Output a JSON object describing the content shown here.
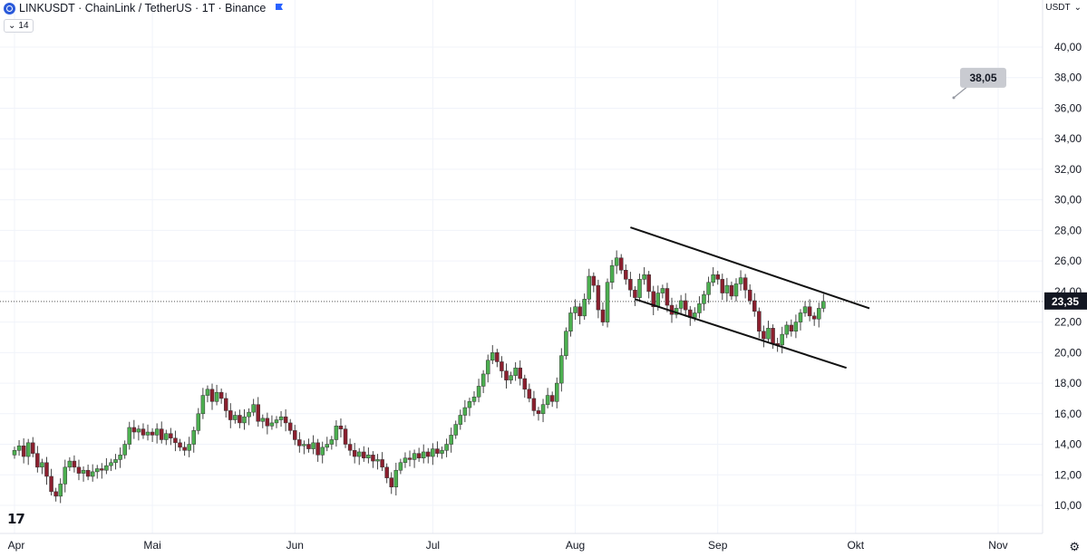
{
  "header": {
    "symbol_line": "LINKUSDT · ChainLink / TetherUS · 1T · Binance",
    "indicator_badge": "14"
  },
  "currency_label": "USDT",
  "colors": {
    "up": "#4caf50",
    "down": "#8b1f2e",
    "wick": "#555555",
    "grid": "#f0f3fa",
    "axis": "#e0e3eb"
  },
  "chart_data": {
    "type": "candlestick",
    "title": "LINKUSDT · ChainLink / TetherUS · 1T · Binance",
    "ylim": [
      8.8,
      41.5
    ],
    "yticks": [
      "40,00",
      "38,00",
      "36,00",
      "34,00",
      "32,00",
      "30,00",
      "28,00",
      "26,00",
      "24,00",
      "22,00",
      "20,00",
      "18,00",
      "16,00",
      "14,00",
      "12,00",
      "10,00"
    ],
    "ytick_values": [
      40,
      38,
      36,
      34,
      32,
      30,
      28,
      26,
      24,
      22,
      20,
      18,
      16,
      14,
      12,
      10
    ],
    "xticks": [
      "Apr",
      "Mai",
      "Jun",
      "Jul",
      "Aug",
      "Sep",
      "Okt",
      "Nov"
    ],
    "xtick_days": [
      0,
      30,
      61,
      91,
      122,
      153,
      183,
      214
    ],
    "xlim": [
      -1,
      218
    ],
    "current_price": 23.35,
    "current_price_label": "23,35",
    "target_price": 38.05,
    "target_label": "38,05",
    "channel": {
      "upper": [
        {
          "day": 134,
          "price": 28.2
        },
        {
          "day": 186,
          "price": 22.9
        }
      ],
      "lower": [
        {
          "day": 135,
          "price": 23.5
        },
        {
          "day": 181,
          "price": 19.0
        }
      ]
    },
    "closes": [
      13.6,
      13.9,
      13.2,
      14.1,
      13.4,
      12.5,
      12.8,
      11.9,
      10.9,
      10.6,
      11.4,
      12.5,
      12.9,
      12.5,
      12.1,
      12.3,
      11.9,
      12.2,
      12.4,
      12.3,
      12.6,
      12.8,
      13.0,
      13.3,
      14.0,
      15.1,
      14.8,
      15.0,
      14.6,
      14.8,
      14.6,
      15.0,
      14.3,
      14.7,
      14.4,
      14.1,
      13.8,
      13.6,
      14.0,
      14.9,
      16.0,
      17.2,
      17.6,
      16.8,
      17.4,
      17.0,
      16.2,
      15.6,
      15.9,
      15.4,
      15.8,
      16.1,
      16.6,
      15.5,
      15.7,
      15.2,
      15.4,
      15.6,
      15.8,
      15.4,
      14.9,
      14.3,
      13.9,
      14.0,
      13.7,
      14.1,
      13.3,
      13.8,
      14.0,
      14.3,
      15.2,
      15.0,
      14.0,
      13.6,
      13.2,
      13.5,
      13.1,
      13.3,
      12.9,
      13.0,
      12.5,
      11.8,
      11.2,
      12.3,
      12.8,
      13.1,
      13.0,
      13.4,
      13.1,
      13.5,
      13.2,
      13.7,
      13.4,
      13.6,
      14.0,
      14.6,
      15.3,
      15.9,
      16.4,
      16.8,
      17.1,
      17.8,
      18.6,
      19.5,
      20.0,
      19.4,
      18.8,
      18.2,
      18.5,
      19.0,
      18.3,
      17.6,
      17.0,
      16.2,
      16.0,
      16.6,
      17.2,
      16.8,
      18.0,
      19.8,
      21.4,
      22.6,
      23.0,
      22.4,
      23.5,
      25.0,
      24.4,
      22.8,
      22.0,
      24.6,
      25.7,
      26.2,
      25.4,
      24.8,
      24.1,
      23.6,
      24.8,
      25.1,
      24.0,
      23.0,
      23.9,
      24.2,
      23.1,
      22.5,
      22.9,
      23.4,
      22.8,
      22.3,
      22.6,
      23.2,
      23.8,
      24.6,
      25.1,
      24.8,
      23.9,
      24.4,
      23.7,
      24.5,
      24.9,
      24.1,
      23.4,
      22.7,
      21.4,
      20.9,
      21.6,
      20.6,
      20.5,
      21.2,
      21.8,
      21.4,
      22.0,
      22.6,
      23.0,
      22.4,
      22.2,
      22.9,
      23.35
    ],
    "annotation_text": "38,05"
  },
  "logo_text": "17"
}
